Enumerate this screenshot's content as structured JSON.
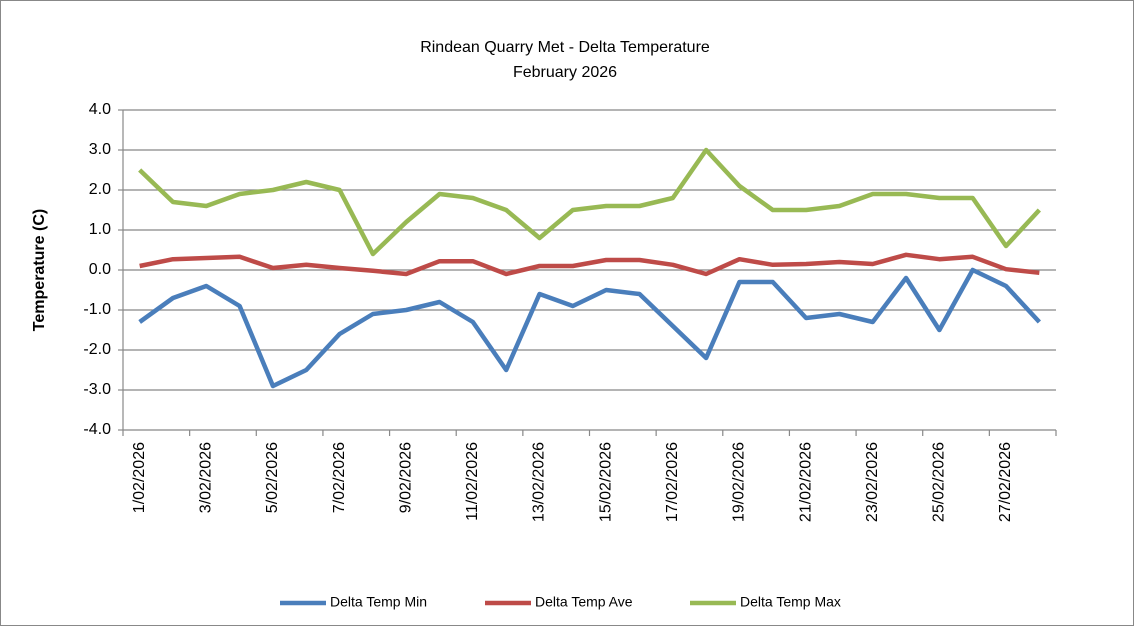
{
  "chart_data": {
    "type": "line",
    "title": "Rindean Quarry Met -  Delta Temperature",
    "subtitle": "February 2026",
    "y_label": "Temperature (C)",
    "categories": [
      "1/02/2026",
      null,
      "3/02/2026",
      null,
      "5/02/2026",
      null,
      "7/02/2026",
      null,
      "9/02/2026",
      null,
      "11/02/2026",
      null,
      "13/02/2026",
      null,
      "15/02/2026",
      null,
      "17/02/2026",
      null,
      "19/02/2026",
      null,
      "21/02/2026",
      null,
      "23/02/2026",
      null,
      "25/02/2026",
      null,
      "27/02/2026",
      null
    ],
    "series": [
      {
        "name": "Delta Temp Min",
        "color": "#4a7ebb",
        "values": [
          -1.3,
          -0.7,
          -0.4,
          -0.9,
          -2.9,
          -2.5,
          -1.6,
          -1.1,
          -1.0,
          -0.8,
          -1.3,
          -2.5,
          -0.6,
          -0.9,
          -0.5,
          -0.6,
          -1.4,
          -2.2,
          -0.3,
          -0.3,
          -1.2,
          -1.1,
          -1.3,
          -0.2,
          -1.5,
          0.0,
          -0.4,
          -1.3
        ]
      },
      {
        "name": "Delta Temp Ave",
        "color": "#be4b48",
        "values": [
          0.1,
          0.27,
          0.3,
          0.33,
          0.05,
          0.13,
          0.05,
          -0.02,
          -0.1,
          0.22,
          0.22,
          -0.1,
          0.1,
          0.1,
          0.25,
          0.25,
          0.13,
          -0.1,
          0.27,
          0.13,
          0.15,
          0.2,
          0.15,
          0.38,
          0.27,
          0.33,
          0.02,
          -0.07
        ]
      },
      {
        "name": "Delta Temp Max",
        "color": "#98b954",
        "values": [
          2.5,
          1.7,
          1.6,
          1.9,
          2.0,
          2.2,
          2.0,
          0.4,
          1.2,
          1.9,
          1.8,
          1.5,
          0.8,
          1.5,
          1.6,
          1.6,
          1.8,
          3.0,
          2.1,
          1.5,
          1.5,
          1.6,
          1.9,
          1.9,
          1.8,
          1.8,
          0.6,
          1.5
        ]
      }
    ],
    "ylim": [
      -4,
      4
    ],
    "yticks": [
      {
        "value": -4,
        "label": "-4.0"
      },
      {
        "value": -3,
        "label": "-3.0"
      },
      {
        "value": -2,
        "label": "-2.0"
      },
      {
        "value": -1,
        "label": "-1.0"
      },
      {
        "value": 0,
        "label": "0.0"
      },
      {
        "value": 1,
        "label": "1.0"
      },
      {
        "value": 2,
        "label": "2.0"
      },
      {
        "value": 3,
        "label": "3.0"
      },
      {
        "value": 4,
        "label": "4.0"
      }
    ],
    "grid": true,
    "legend": "bottom"
  }
}
